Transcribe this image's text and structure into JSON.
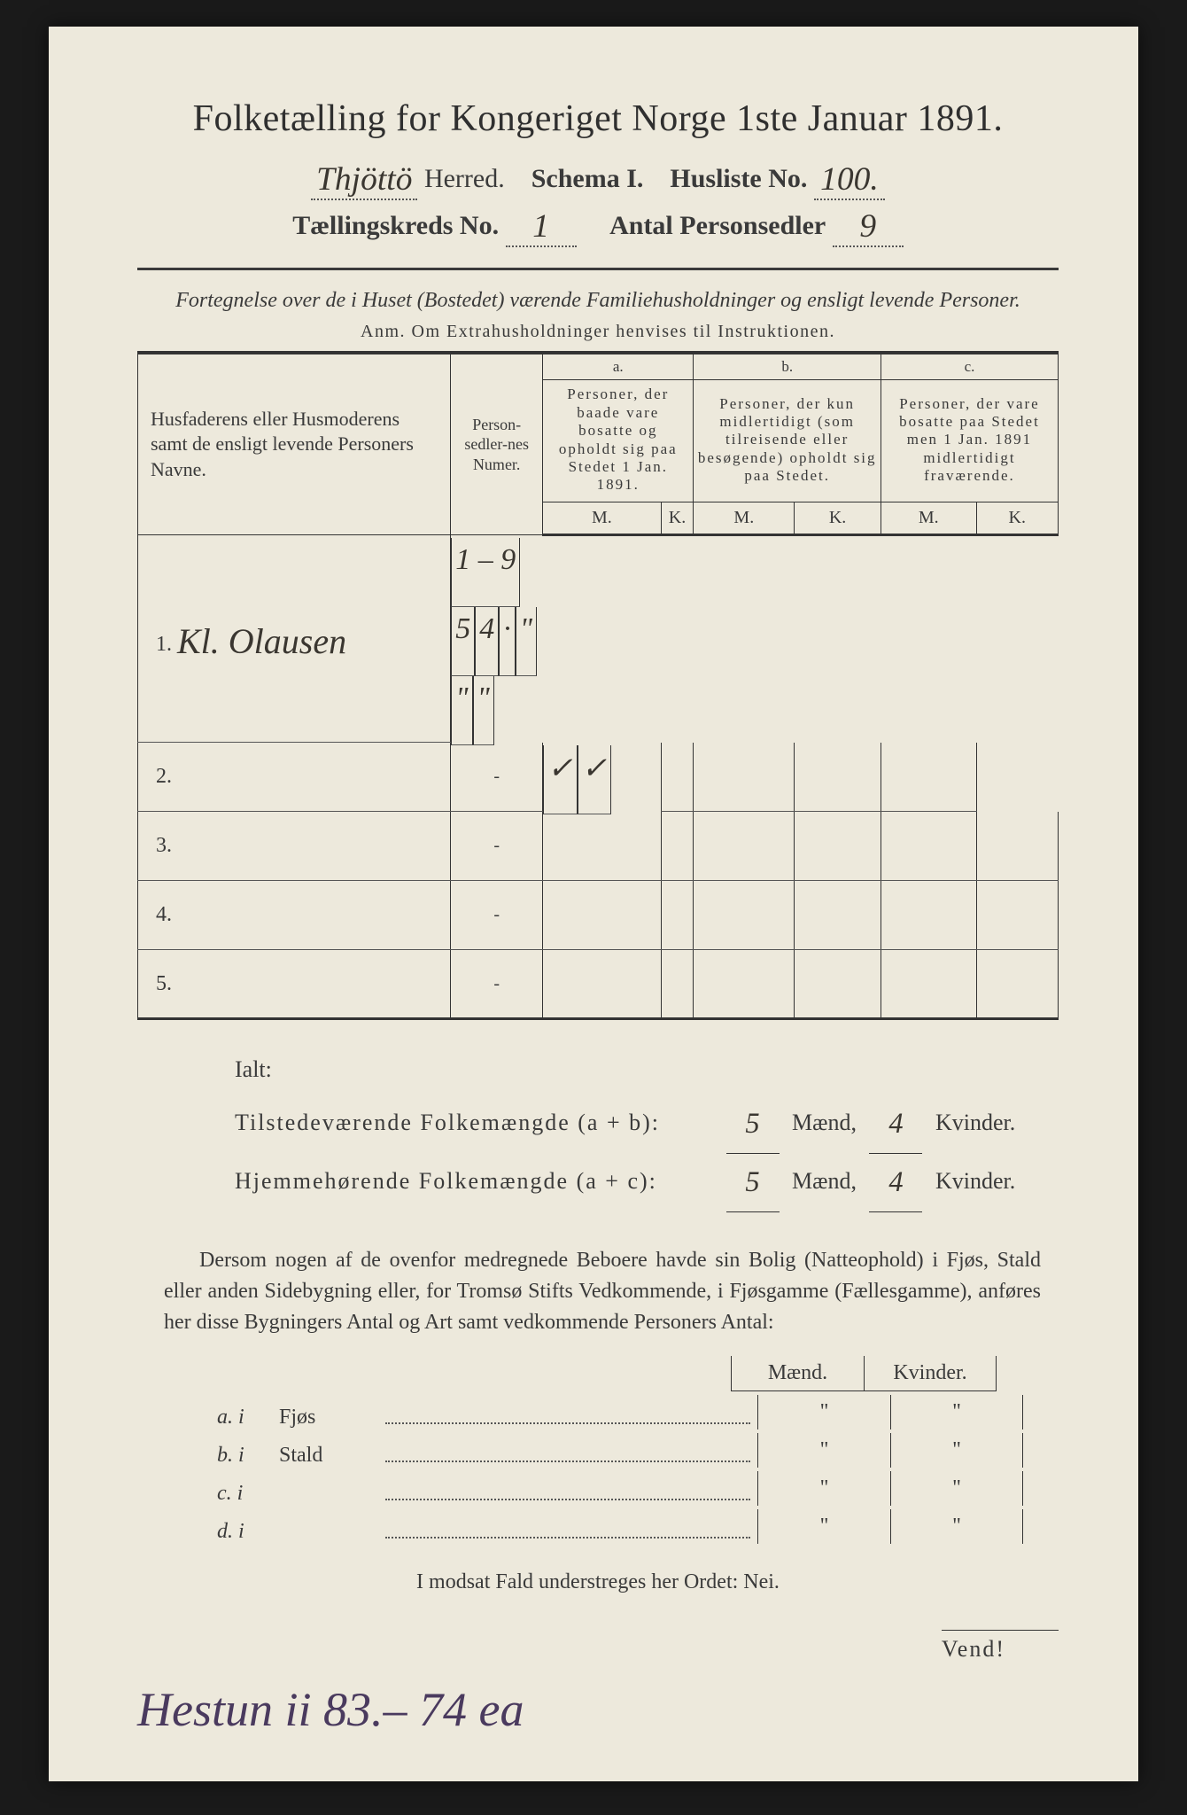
{
  "title": "Folketælling for Kongeriget Norge 1ste Januar 1891.",
  "header": {
    "herred_label": "Herred.",
    "herred_value": "Thjöttö",
    "schema_label": "Schema I.",
    "husliste_label": "Husliste No.",
    "husliste_value": "100.",
    "kreds_label": "Tællingskreds No.",
    "kreds_value": "1",
    "antal_label": "Antal Personsedler",
    "antal_value": "9"
  },
  "note": "Fortegnelse over de i Huset (Bostedet) værende Familiehusholdninger og ensligt levende Personer.",
  "anm": "Anm. Om Extrahusholdninger henvises til Instruktionen.",
  "columns": {
    "names": "Husfaderens eller Husmoderens samt de ensligt levende Personers Navne.",
    "numer": "Person-sedler-nes Numer.",
    "a_top": "a.",
    "a": "Personer, der baade vare bosatte og opholdt sig paa Stedet 1 Jan. 1891.",
    "b_top": "b.",
    "b": "Personer, der kun midlertidigt (som tilreisende eller besøgende) opholdt sig paa Stedet.",
    "c_top": "c.",
    "c": "Personer, der vare bosatte paa Stedet men 1 Jan. 1891 midlertidigt fraværende.",
    "m": "M.",
    "k": "K."
  },
  "rows": [
    {
      "n": "1.",
      "name": "Kl. Olausen",
      "num": "1 – 9",
      "am": "5",
      "ak": "4",
      "bm": "·",
      "bk": "\"",
      "cm": "\"",
      "ck": "\""
    },
    {
      "n": "2.",
      "name": "",
      "num": "-",
      "am": "✓",
      "ak": "✓",
      "bm": "",
      "bk": "",
      "cm": "",
      "ck": ""
    },
    {
      "n": "3.",
      "name": "",
      "num": "-",
      "am": "",
      "ak": "",
      "bm": "",
      "bk": "",
      "cm": "",
      "ck": ""
    },
    {
      "n": "4.",
      "name": "",
      "num": "-",
      "am": "",
      "ak": "",
      "bm": "",
      "bk": "",
      "cm": "",
      "ck": ""
    },
    {
      "n": "5.",
      "name": "",
      "num": "-",
      "am": "",
      "ak": "",
      "bm": "",
      "bk": "",
      "cm": "",
      "ck": ""
    }
  ],
  "ialt": {
    "heading": "Ialt:",
    "line1_label": "Tilstedeværende Folkemængde (a + b):",
    "line1_m": "5",
    "line1_k": "4",
    "line2_label": "Hjemmehørende Folkemængde (a + c):",
    "line2_m": "5",
    "line2_k": "4",
    "maend": "Mænd,",
    "kvinder": "Kvinder."
  },
  "para": "Dersom nogen af de ovenfor medregnede Beboere havde sin Bolig (Natteophold) i Fjøs, Stald eller anden Sidebygning eller, for Tromsø Stifts Vedkommende, i Fjøsgamme (Fællesgamme), anføres her disse Bygningers Antal og Art samt vedkommende Personers Antal:",
  "side": {
    "h1": "Mænd.",
    "h2": "Kvinder.",
    "rows": [
      {
        "lab": "a. i",
        "typ": "Fjøs",
        "m": "\"",
        "k": "\""
      },
      {
        "lab": "b. i",
        "typ": "Stald",
        "m": "\"",
        "k": "\""
      },
      {
        "lab": "c. i",
        "typ": "",
        "m": "\"",
        "k": "\""
      },
      {
        "lab": "d. i",
        "typ": "",
        "m": "\"",
        "k": "\""
      }
    ]
  },
  "nei": "I modsat Fald understreges her Ordet: Nei.",
  "vend": "Vend!",
  "bottom_hand": "Hestun   ii 83.– 74 ea",
  "colors": {
    "paper": "#ede9dc",
    "ink": "#3a3a3a",
    "hand_purple": "#4a3a5e",
    "scan_bg": "#1a1a1a"
  }
}
